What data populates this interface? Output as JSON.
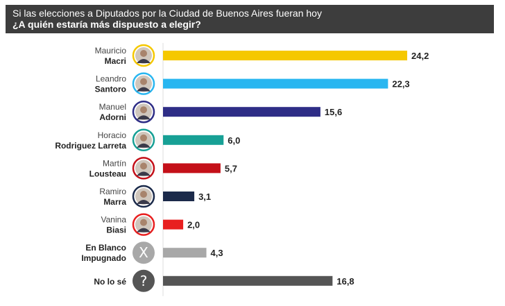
{
  "header": {
    "subtitle": "Si las elecciones a Diputados por la Ciudad de Buenos Aires fueran hoy",
    "title": "¿A quién estaría más dispuesto a elegir?"
  },
  "chart_data": {
    "type": "bar",
    "orientation": "horizontal",
    "categories": [
      {
        "first": "Mauricio",
        "last": "Macri",
        "color": "#f5c800",
        "avatar": "photo"
      },
      {
        "first": "Leandro",
        "last": "Santoro",
        "color": "#29b6f0",
        "avatar": "photo"
      },
      {
        "first": "Manuel",
        "last": "Adorni",
        "color": "#2e2d86",
        "avatar": "photo"
      },
      {
        "first": "Horacio",
        "last": "Rodriguez Larreta",
        "color": "#17a095",
        "avatar": "photo"
      },
      {
        "first": "Martín",
        "last": "Lousteau",
        "color": "#c41019",
        "avatar": "photo"
      },
      {
        "first": "Ramiro",
        "last": "Marra",
        "color": "#1b2a4a",
        "avatar": "photo"
      },
      {
        "first": "Vanina",
        "last": "Biasi",
        "color": "#e81f1f",
        "avatar": "photo"
      },
      {
        "first": "En Blanco",
        "last": "Impugnado",
        "color": "#a8a8a8",
        "avatar": "x-icon",
        "glyph": "X"
      },
      {
        "first": "",
        "last": "No lo sé",
        "color": "#555555",
        "avatar": "question-icon",
        "glyph": "?"
      }
    ],
    "values": [
      24.2,
      22.3,
      15.6,
      6.0,
      5.7,
      3.1,
      2.0,
      4.3,
      16.8
    ],
    "value_labels": [
      "24,2",
      "22,3",
      "15,6",
      "6,0",
      "5,7",
      "3,1",
      "2,0",
      "4,3",
      "16,8"
    ],
    "xlim": [
      0,
      24.2
    ]
  }
}
